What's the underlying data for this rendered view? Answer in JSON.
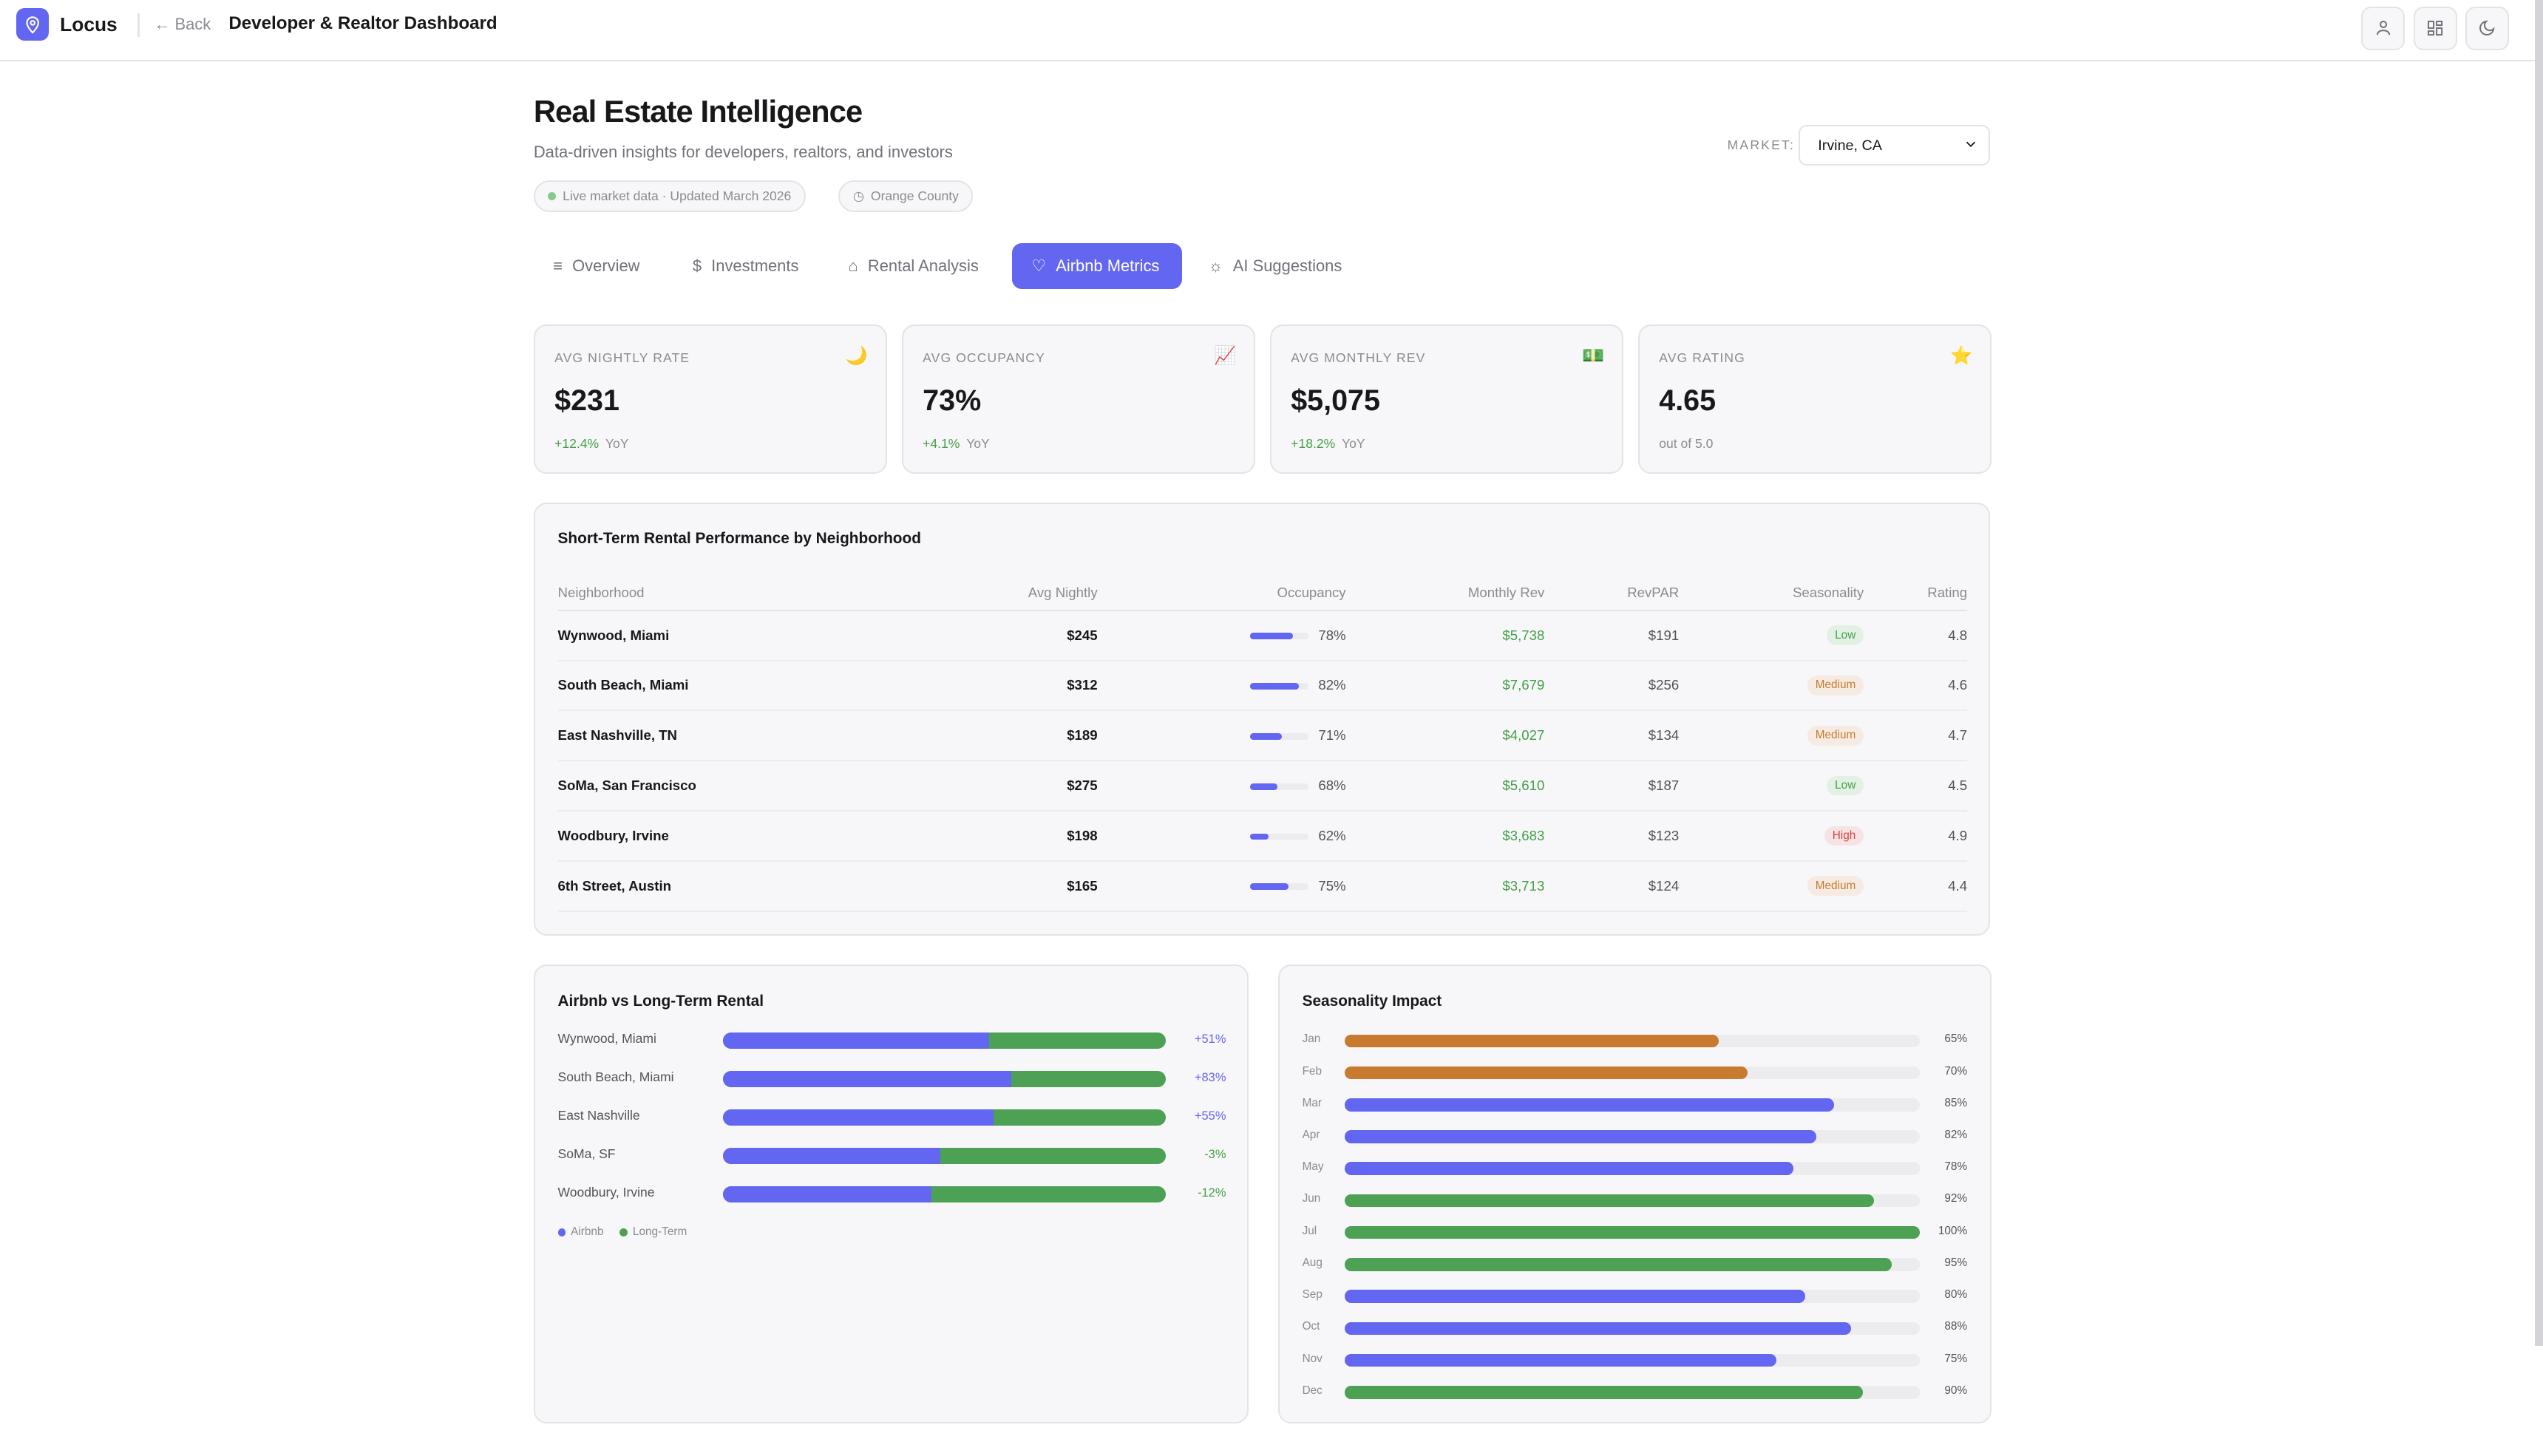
{
  "header": {
    "brand": "Locus",
    "back": "Back",
    "title": "Developer & Realtor Dashboard"
  },
  "page": {
    "title": "Real Estate Intelligence",
    "subtitle": "Data-driven insights for developers, realtors, and investors",
    "live_pill": "Live market data · Updated March 2026",
    "region_pill": "Orange County",
    "market_label": "MARKET:",
    "market_value": "Irvine, CA"
  },
  "tabs": [
    {
      "label": "Overview",
      "icon": "list-icon"
    },
    {
      "label": "Investments",
      "icon": "dollar-icon"
    },
    {
      "label": "Rental Analysis",
      "icon": "home-icon"
    },
    {
      "label": "Airbnb Metrics",
      "icon": "heart-icon",
      "active": true
    },
    {
      "label": "AI Suggestions",
      "icon": "lightbulb-icon"
    }
  ],
  "cards": [
    {
      "label": "AVG NIGHTLY RATE",
      "icon": "🌙",
      "value": "$231",
      "change": "+12.4%",
      "suffix": "YoY"
    },
    {
      "label": "AVG OCCUPANCY",
      "icon": "📈",
      "value": "73%",
      "change": "+4.1%",
      "suffix": "YoY"
    },
    {
      "label": "AVG MONTHLY REV",
      "icon": "💵",
      "value": "$5,075",
      "change": "+18.2%",
      "suffix": "YoY"
    },
    {
      "label": "AVG RATING",
      "icon": "⭐",
      "value": "4.65",
      "change": "",
      "suffix": "out of 5.0"
    }
  ],
  "table": {
    "title": "Short-Term Rental Performance by Neighborhood",
    "columns": [
      "Neighborhood",
      "Avg Nightly",
      "Occupancy",
      "Monthly Rev",
      "RevPAR",
      "Seasonality",
      "Rating"
    ],
    "rows": [
      {
        "name": "Wynwood, Miami",
        "nightly": "$245",
        "occ": "78%",
        "occ_value": 78,
        "rev": "$5,738",
        "revpar": "$191",
        "season": "Low",
        "rating": "4.8"
      },
      {
        "name": "South Beach, Miami",
        "nightly": "$312",
        "occ": "82%",
        "occ_value": 82,
        "rev": "$7,679",
        "revpar": "$256",
        "season": "Medium",
        "rating": "4.6"
      },
      {
        "name": "East Nashville, TN",
        "nightly": "$189",
        "occ": "71%",
        "occ_value": 71,
        "rev": "$4,027",
        "revpar": "$134",
        "season": "Medium",
        "rating": "4.7"
      },
      {
        "name": "SoMa, San Francisco",
        "nightly": "$275",
        "occ": "68%",
        "occ_value": 68,
        "rev": "$5,610",
        "revpar": "$187",
        "season": "Low",
        "rating": "4.5"
      },
      {
        "name": "Woodbury, Irvine",
        "nightly": "$198",
        "occ": "62%",
        "occ_value": 62,
        "rev": "$3,683",
        "revpar": "$123",
        "season": "High",
        "rating": "4.9"
      },
      {
        "name": "6th Street, Austin",
        "nightly": "$165",
        "occ": "75%",
        "occ_value": 75,
        "rev": "$3,713",
        "revpar": "$124",
        "season": "Medium",
        "rating": "4.4"
      }
    ]
  },
  "season_colors": {
    "Low": [
      "#e3f1e4",
      "#43a047"
    ],
    "Medium": [
      "#f5ebe2",
      "#c87a2e"
    ],
    "High": [
      "#f6e3e4",
      "#d64545"
    ]
  },
  "comparison": {
    "title": "Airbnb vs Long-Term Rental",
    "legend": [
      "Airbnb",
      "Long-Term"
    ],
    "colors": {
      "airbnb": "#6366f1",
      "longterm": "#4ca154"
    },
    "rows": [
      {
        "name": "Wynwood, Miami",
        "diff": "+51%",
        "airbnb_share": 0.6
      },
      {
        "name": "South Beach, Miami",
        "diff": "+83%",
        "airbnb_share": 0.65
      },
      {
        "name": "East Nashville",
        "diff": "+55%",
        "airbnb_share": 0.61
      },
      {
        "name": "SoMa, SF",
        "diff": "-3%",
        "airbnb_share": 0.49
      },
      {
        "name": "Woodbury, Irvine",
        "diff": "-12%",
        "airbnb_share": 0.47
      }
    ]
  },
  "seasonality": {
    "title": "Seasonality Impact",
    "months": [
      {
        "m": "Jan",
        "v": 65,
        "label": "65%"
      },
      {
        "m": "Feb",
        "v": 70,
        "label": "70%"
      },
      {
        "m": "Mar",
        "v": 85,
        "label": "85%"
      },
      {
        "m": "Apr",
        "v": 82,
        "label": "82%"
      },
      {
        "m": "May",
        "v": 78,
        "label": "78%"
      },
      {
        "m": "Jun",
        "v": 92,
        "label": "92%"
      },
      {
        "m": "Jul",
        "v": 100,
        "label": "100%"
      },
      {
        "m": "Aug",
        "v": 95,
        "label": "95%"
      },
      {
        "m": "Sep",
        "v": 80,
        "label": "80%"
      },
      {
        "m": "Oct",
        "v": 88,
        "label": "88%"
      },
      {
        "m": "Nov",
        "v": 75,
        "label": "75%"
      },
      {
        "m": "Dec",
        "v": 90,
        "label": "90%"
      }
    ]
  }
}
